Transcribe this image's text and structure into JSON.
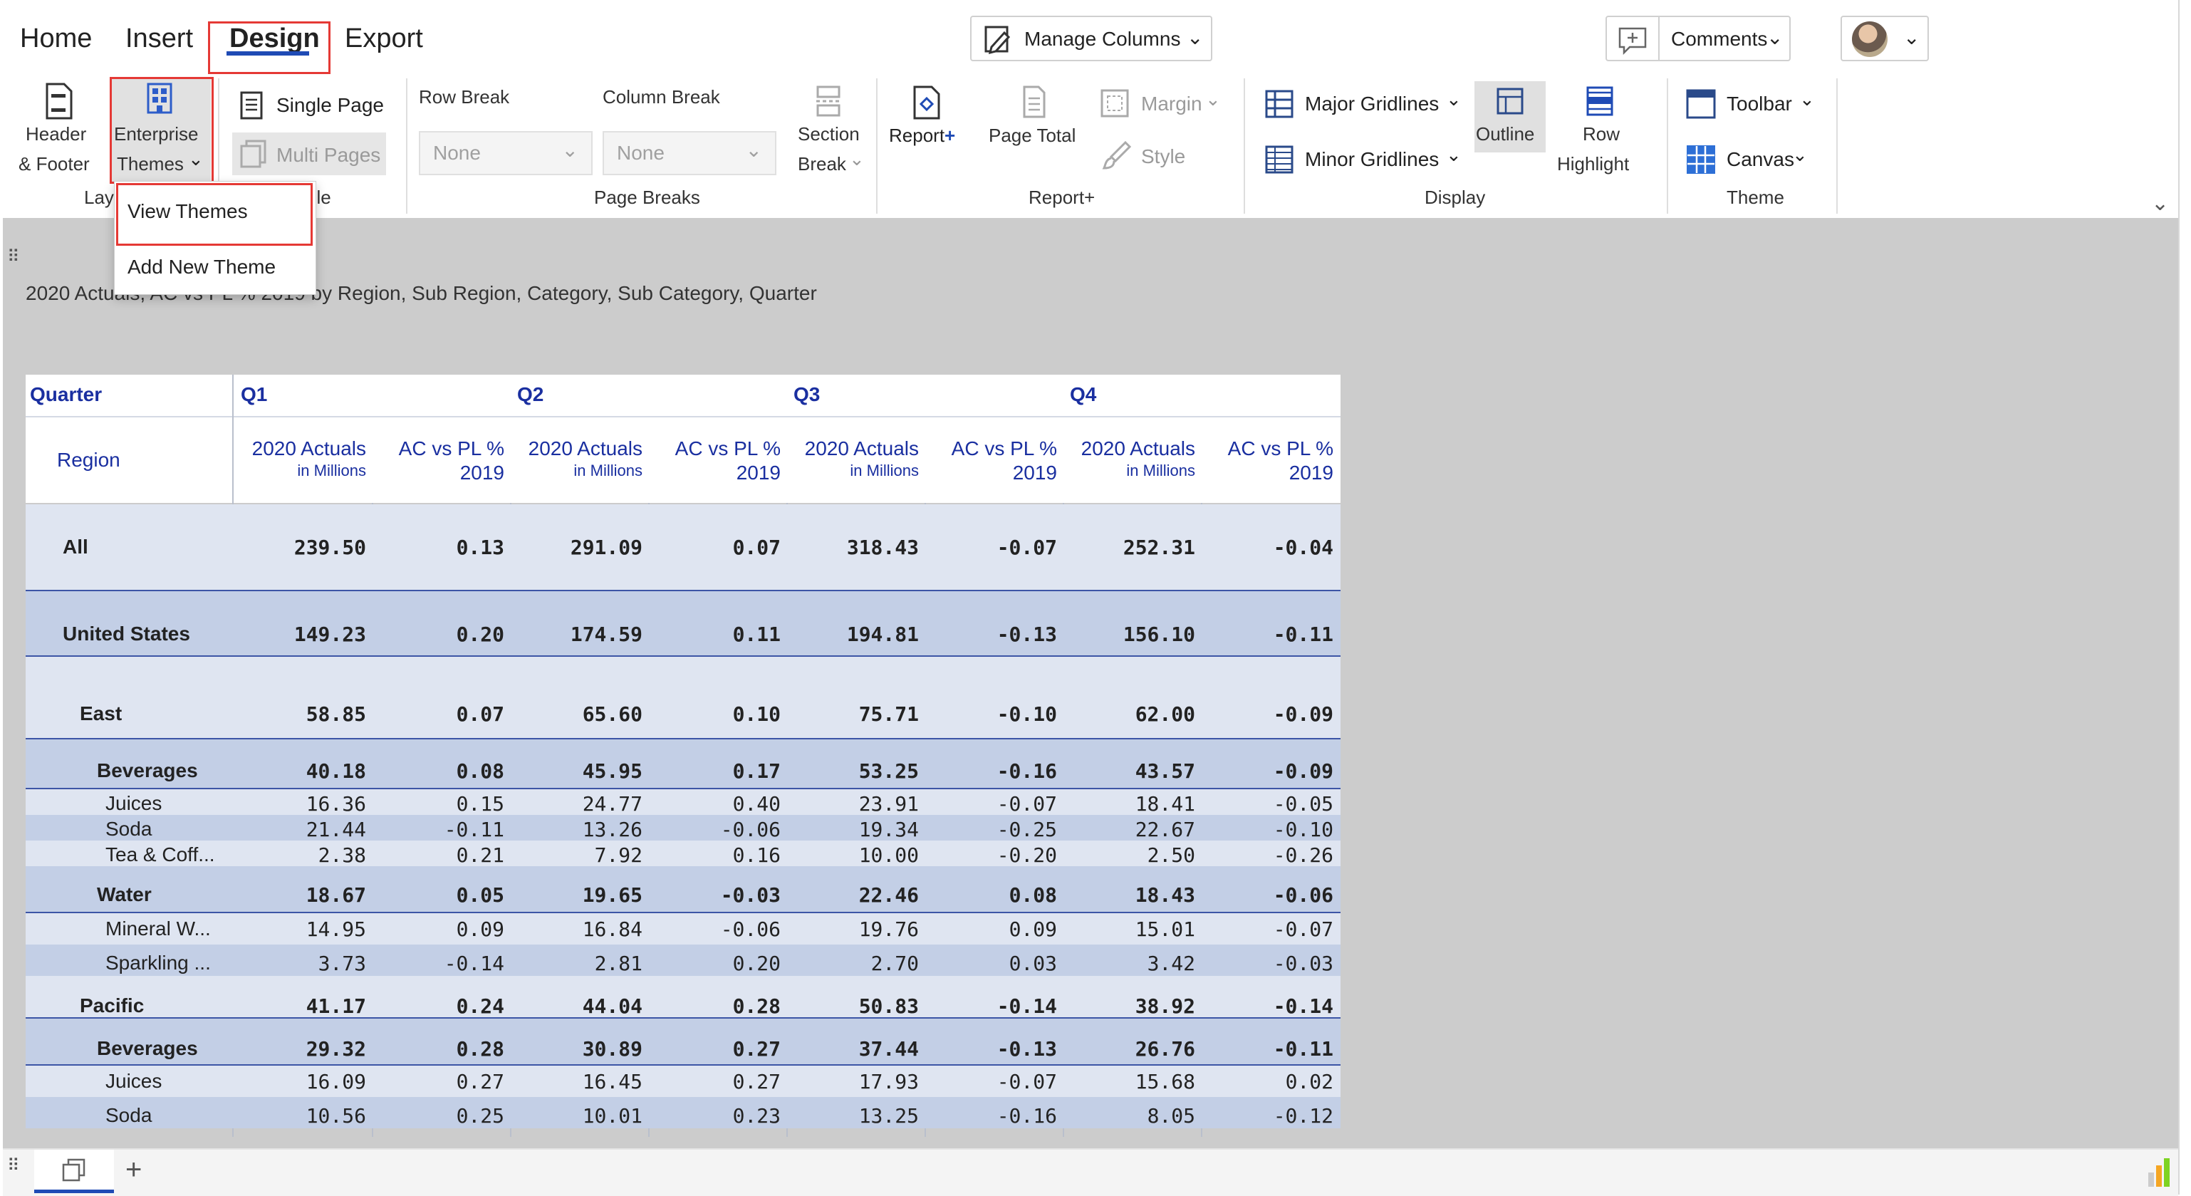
{
  "tabs": [
    "Home",
    "Insert",
    "Design",
    "Export"
  ],
  "active_tab": "Design",
  "toolbar_top": {
    "manage_columns": "Manage Columns",
    "comments": "Comments"
  },
  "ribbon": {
    "header_footer": [
      "Header",
      "& Footer"
    ],
    "enterprise_themes": [
      "Enterprise",
      "Themes"
    ],
    "single_page": "Single Page",
    "multi_pages": "Multi Pages",
    "row_break": "Row Break",
    "column_break": "Column Break",
    "row_break_value": "None",
    "column_break_value": "None",
    "section_break": [
      "Section",
      "Break"
    ],
    "report_plus": "Report",
    "page_total": "Page Total",
    "margin": "Margin",
    "style": "Style",
    "major_gridlines": "Major Gridlines",
    "minor_gridlines": "Minor Gridlines",
    "outline": "Outline",
    "row_highlight": [
      "Row",
      "Highlight"
    ],
    "toolbar": "Toolbar",
    "canvas": "Canvas",
    "groups": {
      "layout_partial": "Lay",
      "table_partial": "ble",
      "page_breaks": "Page Breaks",
      "report_plus": "Report+",
      "display": "Display",
      "theme": "Theme"
    }
  },
  "dropdown": {
    "items": [
      "View Themes",
      "Add New Theme"
    ]
  },
  "report": {
    "title": "2020 Actuals, AC vs PL % 2019 by Region, Sub Region, Category, Sub Category, Quarter",
    "header": {
      "quarter_label": "Quarter",
      "region_label": "Region",
      "quarters": [
        "Q1",
        "Q2",
        "Q3",
        "Q4"
      ],
      "measure1": [
        "2020 Actuals",
        "in Millions"
      ],
      "measure2": [
        "AC vs PL %",
        "2019"
      ]
    },
    "rows": [
      {
        "label": "All",
        "level": 0,
        "values": [
          "239.50",
          "0.13",
          "291.09",
          "0.07",
          "318.43",
          "-0.07",
          "252.31",
          "-0.04"
        ]
      },
      {
        "label": "United States",
        "level": 0,
        "values": [
          "149.23",
          "0.20",
          "174.59",
          "0.11",
          "194.81",
          "-0.13",
          "156.10",
          "-0.11"
        ]
      },
      {
        "label": "East",
        "level": 1,
        "values": [
          "58.85",
          "0.07",
          "65.60",
          "0.10",
          "75.71",
          "-0.10",
          "62.00",
          "-0.09"
        ]
      },
      {
        "label": "Beverages",
        "level": 2,
        "values": [
          "40.18",
          "0.08",
          "45.95",
          "0.17",
          "53.25",
          "-0.16",
          "43.57",
          "-0.09"
        ]
      },
      {
        "label": "Juices",
        "level": 3,
        "values": [
          "16.36",
          "0.15",
          "24.77",
          "0.40",
          "23.91",
          "-0.07",
          "18.41",
          "-0.05"
        ]
      },
      {
        "label": "Soda",
        "level": 3,
        "values": [
          "21.44",
          "-0.11",
          "13.26",
          "-0.06",
          "19.34",
          "-0.25",
          "22.67",
          "-0.10"
        ]
      },
      {
        "label": "Tea & Coff...",
        "level": 3,
        "values": [
          "2.38",
          "0.21",
          "7.92",
          "0.16",
          "10.00",
          "-0.20",
          "2.50",
          "-0.26"
        ]
      },
      {
        "label": "Water",
        "level": 2,
        "values": [
          "18.67",
          "0.05",
          "19.65",
          "-0.03",
          "22.46",
          "0.08",
          "18.43",
          "-0.06"
        ]
      },
      {
        "label": "Mineral W...",
        "level": 3,
        "values": [
          "14.95",
          "0.09",
          "16.84",
          "-0.06",
          "19.76",
          "0.09",
          "15.01",
          "-0.07"
        ]
      },
      {
        "label": "Sparkling ...",
        "level": 3,
        "values": [
          "3.73",
          "-0.14",
          "2.81",
          "0.20",
          "2.70",
          "0.03",
          "3.42",
          "-0.03"
        ]
      },
      {
        "label": "Pacific",
        "level": 1,
        "values": [
          "41.17",
          "0.24",
          "44.04",
          "0.28",
          "50.83",
          "-0.14",
          "38.92",
          "-0.14"
        ]
      },
      {
        "label": "Beverages",
        "level": 2,
        "values": [
          "29.32",
          "0.28",
          "30.89",
          "0.27",
          "37.44",
          "-0.13",
          "26.76",
          "-0.11"
        ]
      },
      {
        "label": "Juices",
        "level": 3,
        "values": [
          "16.09",
          "0.27",
          "16.45",
          "0.27",
          "17.93",
          "-0.07",
          "15.68",
          "0.02"
        ]
      },
      {
        "label": "Soda",
        "level": 3,
        "values": [
          "10.56",
          "0.25",
          "10.01",
          "0.23",
          "13.25",
          "-0.16",
          "8.05",
          "-0.12"
        ]
      }
    ]
  },
  "colors": {
    "accent": "#1f4bb5",
    "header_text": "#1a2fa0",
    "row_light": "#dfe5f1",
    "row_dark": "#c3cfe6",
    "red_highlight": "#e53935",
    "canvas_bg": "#cccccc"
  }
}
